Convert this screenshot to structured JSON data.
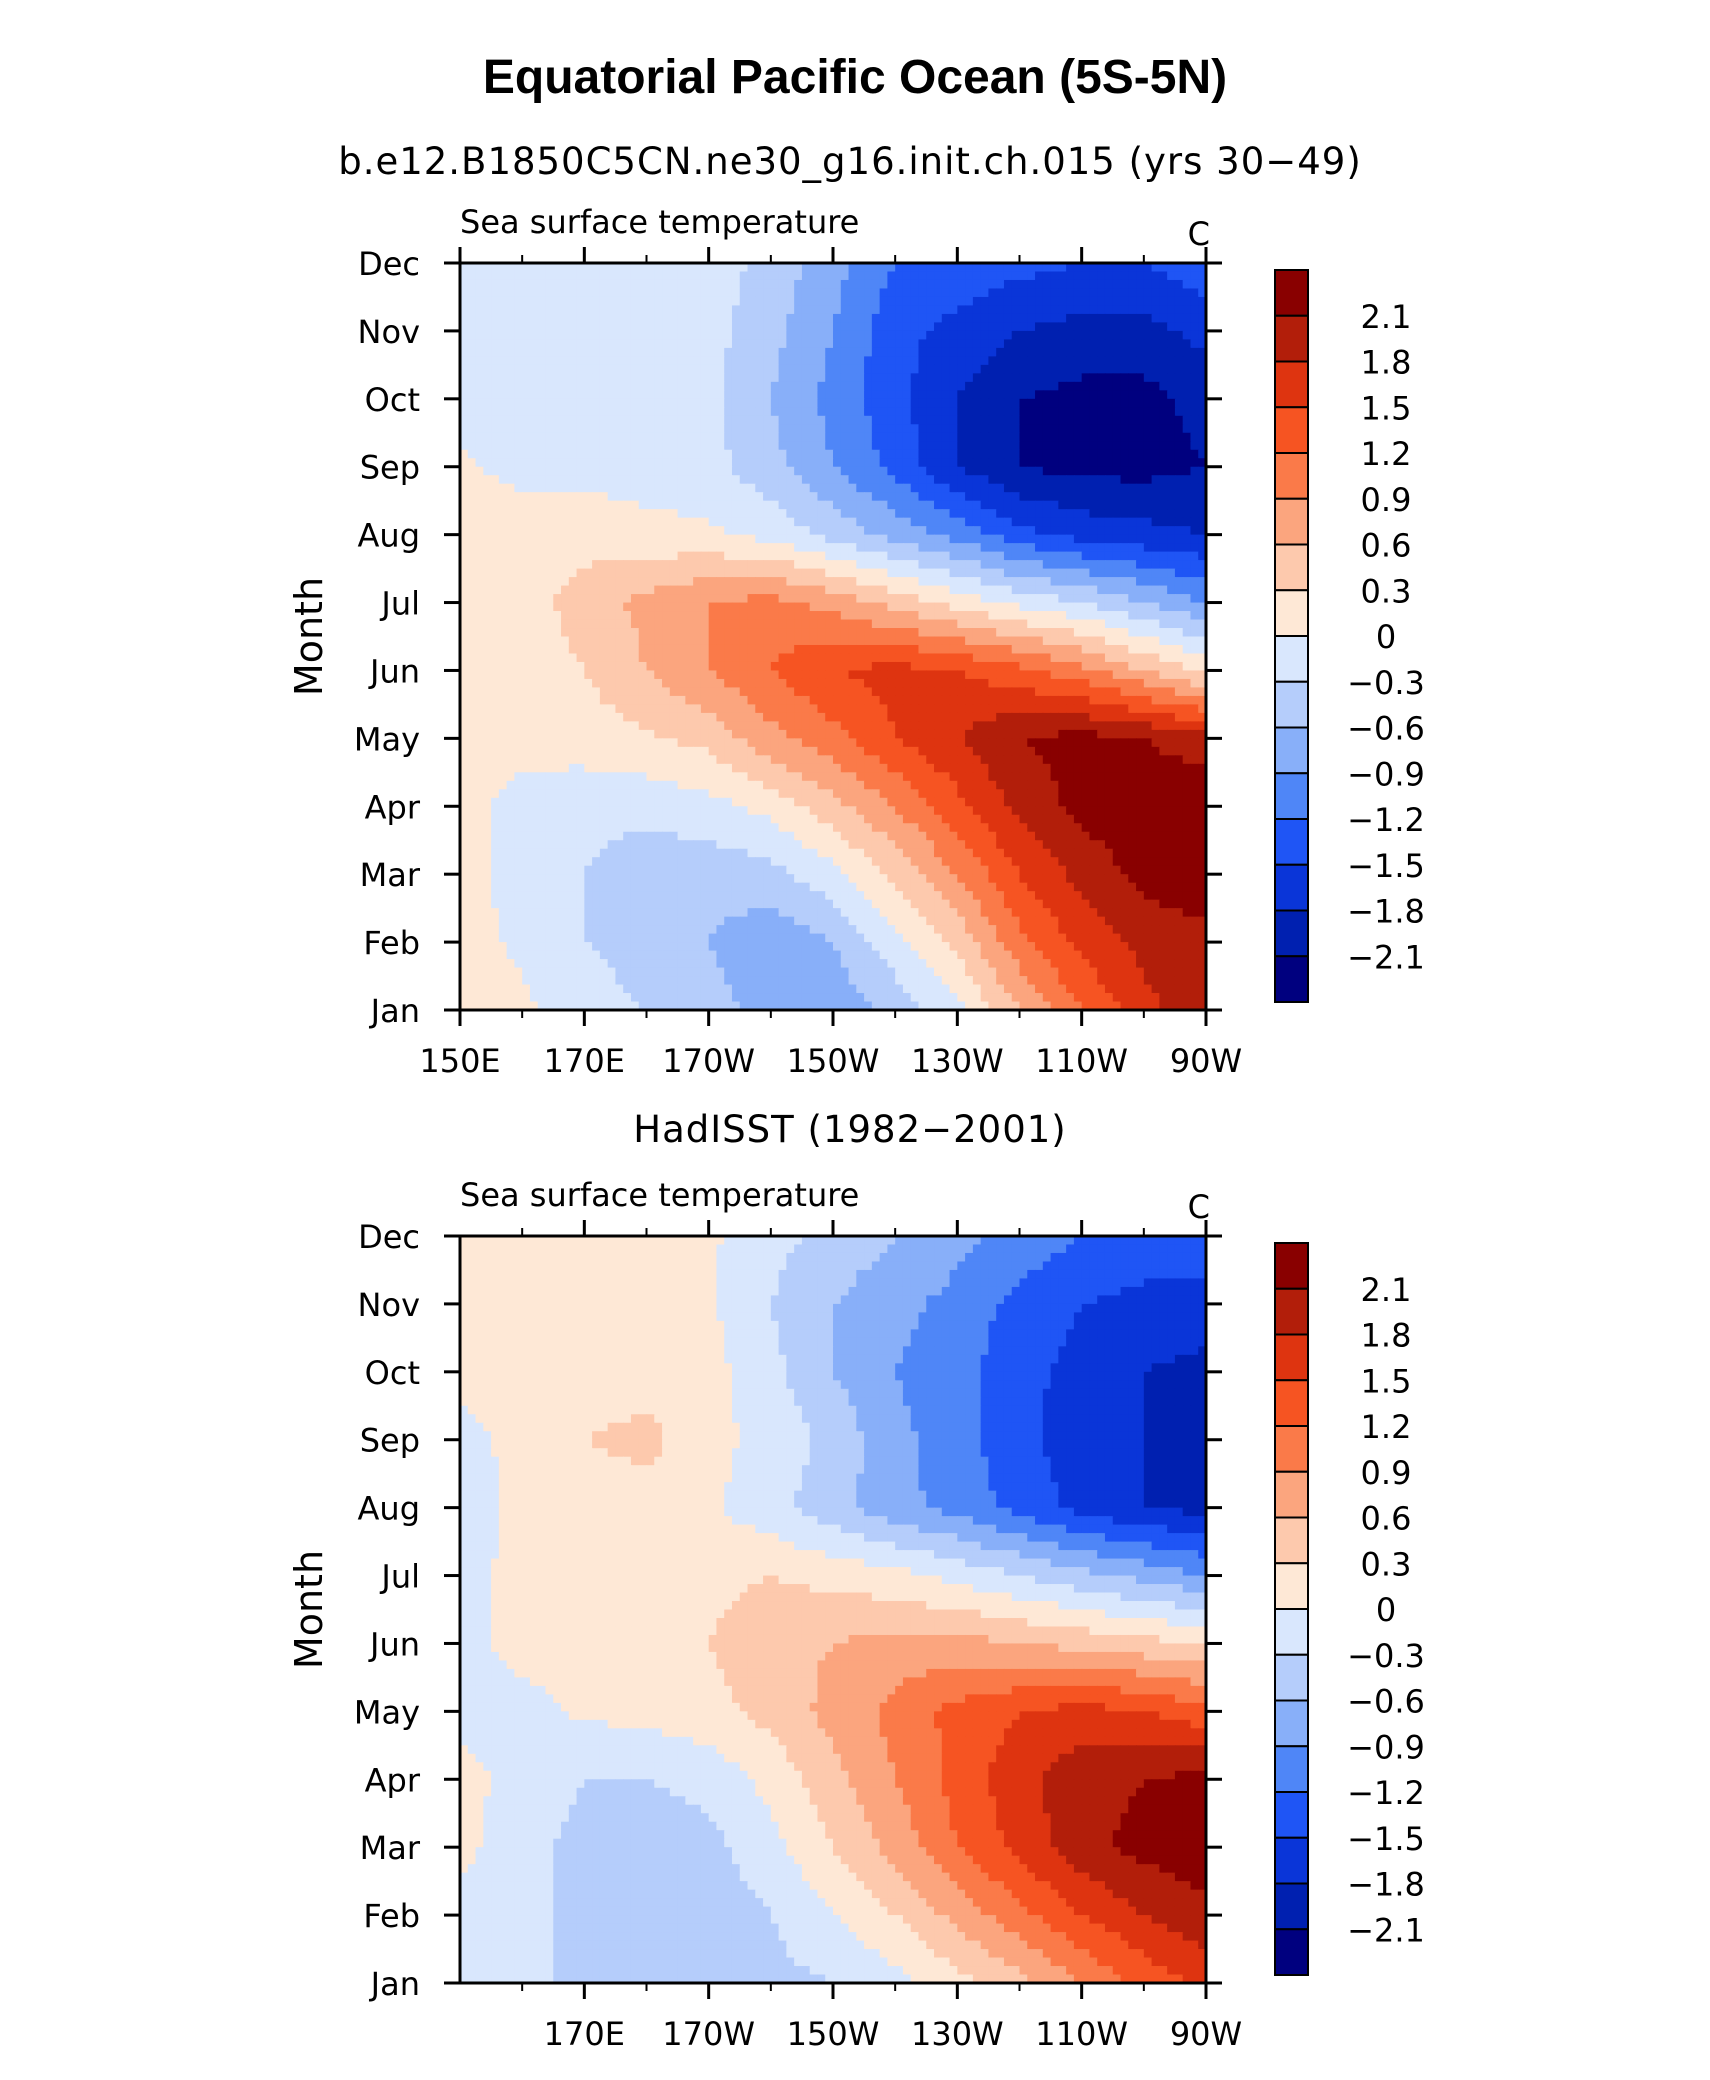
{
  "title": "Equatorial Pacific Ocean (5S-5N)",
  "colorbar": {
    "levels": [
      -2.1,
      -1.8,
      -1.5,
      -1.2,
      -0.9,
      -0.6,
      -0.3,
      0,
      0.3,
      0.6,
      0.9,
      1.2,
      1.5,
      1.8,
      2.1
    ],
    "labels": [
      "−2.1",
      "−1.8",
      "−1.5",
      "−1.2",
      "−0.9",
      "−0.6",
      "−0.3",
      "0",
      "0.3",
      "0.6",
      "0.9",
      "1.2",
      "1.5",
      "1.8",
      "2.1"
    ],
    "colors": [
      "#00007f",
      "#0020b0",
      "#0a35d8",
      "#1f55f5",
      "#4f86f7",
      "#88aff9",
      "#b5cdfb",
      "#d9e7fd",
      "#fee8d6",
      "#fdc9ad",
      "#fba57e",
      "#fa7a49",
      "#f65422",
      "#de3410",
      "#b21e0a",
      "#890000"
    ]
  },
  "chart_data": [
    {
      "type": "heatmap",
      "title": "b.e12.B1850C5CN.ne30_g16.init.ch.015 (yrs 30−49)",
      "left_label": "Sea surface temperature",
      "units": "C",
      "xlabel": "",
      "ylabel": "Month",
      "x_ticks": [
        "150E",
        "170E",
        "170W",
        "150W",
        "130W",
        "110W",
        "90W"
      ],
      "x_tick_values": [
        150,
        170,
        190,
        210,
        230,
        250,
        270
      ],
      "xlim": [
        150,
        270
      ],
      "y_ticks": [
        "Jan",
        "Feb",
        "Mar",
        "Apr",
        "May",
        "Jun",
        "Jul",
        "Aug",
        "Sep",
        "Oct",
        "Nov",
        "Dec"
      ],
      "x": [
        150,
        160,
        170,
        180,
        190,
        200,
        210,
        220,
        230,
        240,
        250,
        260,
        270
      ],
      "values": [
        [
          0.1,
          0.05,
          -0.1,
          -0.3,
          -0.5,
          -0.7,
          -0.8,
          -0.5,
          -0.1,
          0.6,
          1.2,
          1.7,
          2.0
        ],
        [
          0.1,
          -0.05,
          -0.3,
          -0.5,
          -0.6,
          -0.8,
          -0.6,
          -0.1,
          0.4,
          1.1,
          1.6,
          1.9,
          2.0
        ],
        [
          0.1,
          -0.1,
          -0.3,
          -0.5,
          -0.5,
          -0.4,
          -0.1,
          0.4,
          0.9,
          1.5,
          1.9,
          2.2,
          2.3
        ],
        [
          0.1,
          -0.1,
          -0.2,
          -0.2,
          -0.1,
          0.1,
          0.5,
          0.9,
          1.4,
          1.9,
          2.2,
          2.3,
          2.4
        ],
        [
          0.1,
          0.1,
          0.15,
          0.25,
          0.4,
          0.8,
          1.1,
          1.5,
          1.8,
          2.1,
          2.2,
          2.1,
          1.9
        ],
        [
          0.1,
          0.15,
          0.3,
          0.6,
          0.9,
          1.2,
          1.5,
          1.6,
          1.5,
          1.3,
          1.0,
          0.6,
          0.2
        ],
        [
          0.1,
          0.2,
          0.4,
          0.7,
          0.9,
          1.0,
          0.8,
          0.5,
          0.2,
          -0.1,
          -0.3,
          -0.6,
          -0.9
        ],
        [
          0.1,
          0.2,
          0.2,
          0.1,
          0.05,
          -0.1,
          -0.4,
          -0.7,
          -1.0,
          -1.4,
          -1.6,
          -1.7,
          -1.8
        ],
        [
          0.05,
          -0.1,
          -0.1,
          -0.15,
          -0.2,
          -0.5,
          -0.9,
          -1.3,
          -1.8,
          -2.1,
          -2.2,
          -2.2,
          -2.1
        ],
        [
          -0.1,
          -0.1,
          -0.1,
          -0.1,
          -0.2,
          -0.6,
          -1.0,
          -1.4,
          -1.8,
          -2.1,
          -2.2,
          -2.2,
          -2.0
        ],
        [
          -0.1,
          -0.1,
          -0.1,
          -0.1,
          -0.2,
          -0.5,
          -0.9,
          -1.4,
          -1.6,
          -1.8,
          -1.9,
          -1.9,
          -1.7
        ],
        [
          -0.1,
          -0.1,
          -0.1,
          -0.1,
          -0.15,
          -0.4,
          -0.8,
          -1.2,
          -1.3,
          -1.4,
          -1.5,
          -1.5,
          -1.3
        ]
      ]
    },
    {
      "type": "heatmap",
      "title": "HadISST (1982−2001)",
      "left_label": "Sea surface temperature",
      "units": "C",
      "xlabel": "",
      "ylabel": "Month",
      "x_ticks": [
        "170E",
        "170W",
        "150W",
        "130W",
        "110W",
        "90W"
      ],
      "x_tick_values": [
        170,
        190,
        210,
        230,
        250,
        270
      ],
      "xlim": [
        150,
        270
      ],
      "y_ticks": [
        "Jan",
        "Feb",
        "Mar",
        "Apr",
        "May",
        "Jun",
        "Jul",
        "Aug",
        "Sep",
        "Oct",
        "Nov",
        "Dec"
      ],
      "x": [
        150,
        160,
        170,
        180,
        190,
        200,
        210,
        220,
        230,
        240,
        250,
        260,
        270
      ],
      "values": [
        [
          -0.1,
          -0.2,
          -0.4,
          -0.5,
          -0.5,
          -0.4,
          -0.3,
          -0.1,
          0.2,
          0.5,
          0.9,
          1.3,
          1.6
        ],
        [
          -0.1,
          -0.2,
          -0.4,
          -0.5,
          -0.5,
          -0.3,
          0.0,
          0.3,
          0.7,
          1.1,
          1.5,
          1.8,
          2.0
        ],
        [
          0.1,
          -0.2,
          -0.4,
          -0.5,
          -0.4,
          -0.1,
          0.3,
          0.7,
          1.2,
          1.6,
          2.0,
          2.2,
          2.3
        ],
        [
          0.1,
          -0.1,
          -0.3,
          -0.3,
          -0.2,
          0.1,
          0.5,
          0.9,
          1.3,
          1.7,
          2.0,
          2.1,
          2.2
        ],
        [
          -0.1,
          -0.1,
          0.05,
          0.1,
          0.2,
          0.4,
          0.7,
          1.0,
          1.3,
          1.5,
          1.6,
          1.5,
          1.3
        ],
        [
          -0.1,
          0.1,
          0.1,
          0.2,
          0.3,
          0.5,
          0.6,
          0.7,
          0.7,
          0.6,
          0.5,
          0.4,
          0.3
        ],
        [
          -0.1,
          0.1,
          0.1,
          0.1,
          0.2,
          0.3,
          0.2,
          0.1,
          -0.1,
          -0.3,
          -0.5,
          -0.7,
          -0.9
        ],
        [
          -0.2,
          0.1,
          0.1,
          0.15,
          0.05,
          -0.2,
          -0.5,
          -0.8,
          -1.0,
          -1.3,
          -1.6,
          -1.8,
          -1.9
        ],
        [
          -0.1,
          0.1,
          0.3,
          0.4,
          0.1,
          -0.1,
          -0.4,
          -0.8,
          -1.1,
          -1.4,
          -1.7,
          -1.8,
          -1.9
        ],
        [
          0.1,
          0.1,
          0.1,
          0.15,
          0.1,
          -0.2,
          -0.6,
          -0.9,
          -1.1,
          -1.4,
          -1.6,
          -1.8,
          -1.9
        ],
        [
          0.1,
          0.1,
          0.1,
          0.15,
          0.05,
          -0.3,
          -0.6,
          -0.8,
          -1.0,
          -1.3,
          -1.5,
          -1.6,
          -1.6
        ],
        [
          0.1,
          0.1,
          0.1,
          0.1,
          0.05,
          -0.2,
          -0.4,
          -0.6,
          -0.8,
          -1.0,
          -1.2,
          -1.3,
          -1.3
        ]
      ]
    }
  ]
}
